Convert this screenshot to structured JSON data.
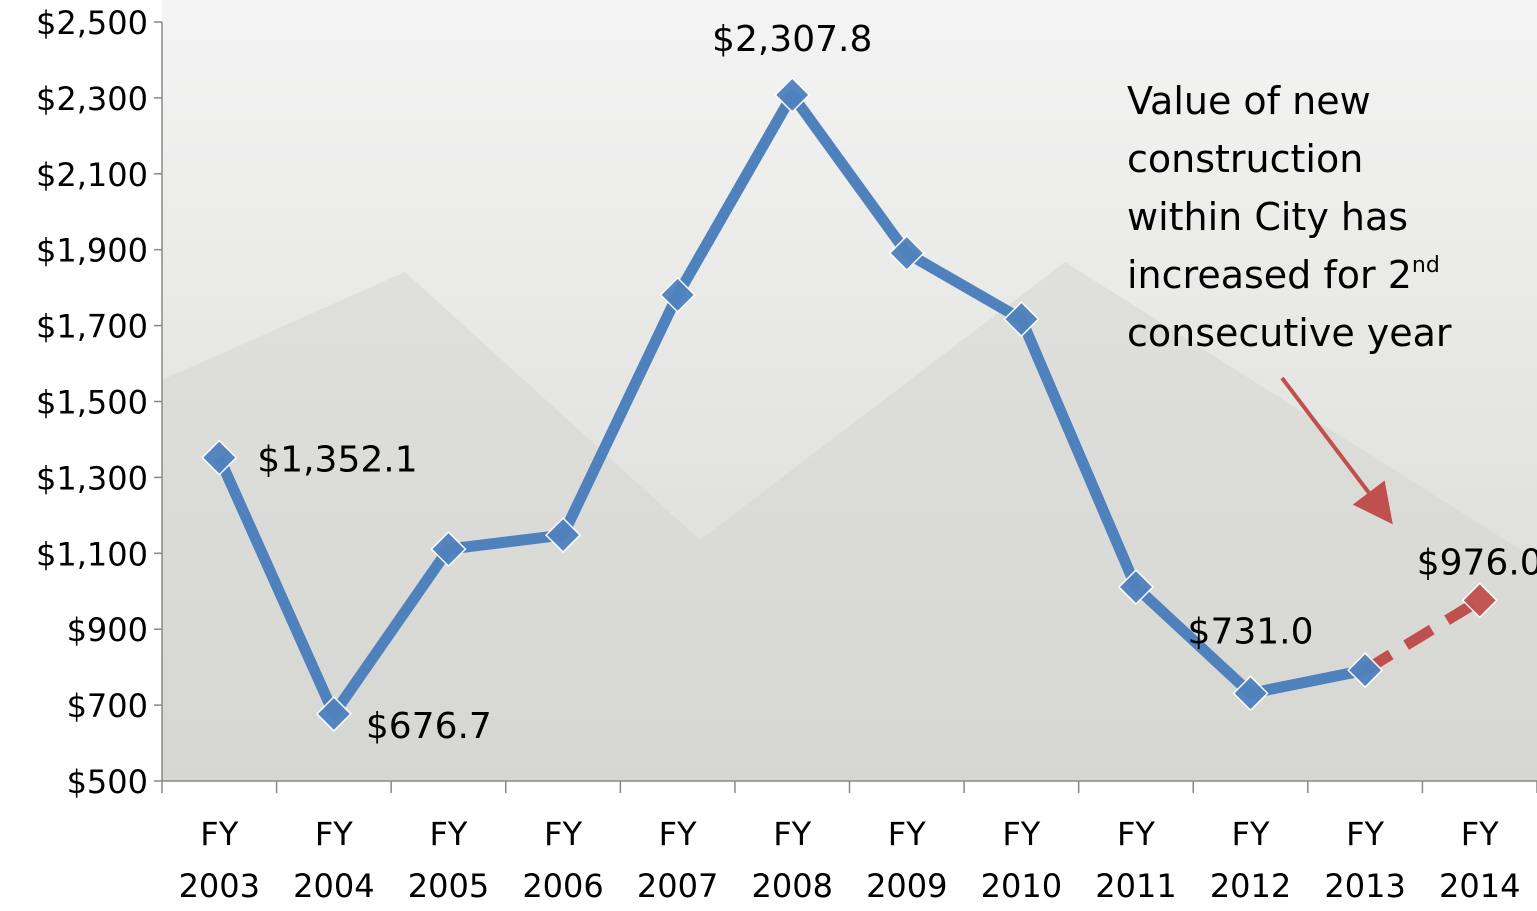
{
  "chart_data": {
    "type": "line",
    "categories": [
      "FY 2003",
      "FY 2004",
      "FY 2005",
      "FY 2006",
      "FY 2007",
      "FY 2008",
      "FY 2009",
      "FY 2010",
      "FY 2011",
      "FY 2012",
      "FY 2013",
      "FY 2014"
    ],
    "series": [
      {
        "color": "#4f81bd",
        "point_colors": [
          "#4f81bd",
          "#4f81bd",
          "#4f81bd",
          "#4f81bd",
          "#4f81bd",
          "#4f81bd",
          "#4f81bd",
          "#4f81bd",
          "#4f81bd",
          "#4f81bd",
          "#4f81bd",
          "#c0504d"
        ],
        "values": [
          1352.1,
          676.7,
          1111,
          1148,
          1781,
          2307.8,
          1891,
          1717,
          1011,
          731.0,
          792,
          976.0
        ],
        "value_labels": [
          "$1,352.1",
          "$676.7",
          null,
          null,
          null,
          "$2,307.8",
          null,
          null,
          null,
          "$731.0",
          null,
          "$976.0"
        ]
      }
    ],
    "ylim": [
      500,
      2500
    ],
    "yticks": [
      {
        "value": 500,
        "label": "$500"
      },
      {
        "value": 700,
        "label": "$700"
      },
      {
        "value": 900,
        "label": "$900"
      },
      {
        "value": 1100,
        "label": "$1,100"
      },
      {
        "value": 1300,
        "label": "$1,300"
      },
      {
        "value": 1500,
        "label": "$1,500"
      },
      {
        "value": 1700,
        "label": "$1,700"
      },
      {
        "value": 1900,
        "label": "$1,900"
      },
      {
        "value": 2100,
        "label": "$2,100"
      },
      {
        "value": 2300,
        "label": "$2,300"
      },
      {
        "value": 2500,
        "label": "$2,500"
      }
    ],
    "annotation": {
      "text": "Value of new construction within City has increased for 2",
      "superscript": "nd",
      "text_after": "consecutive year"
    }
  }
}
